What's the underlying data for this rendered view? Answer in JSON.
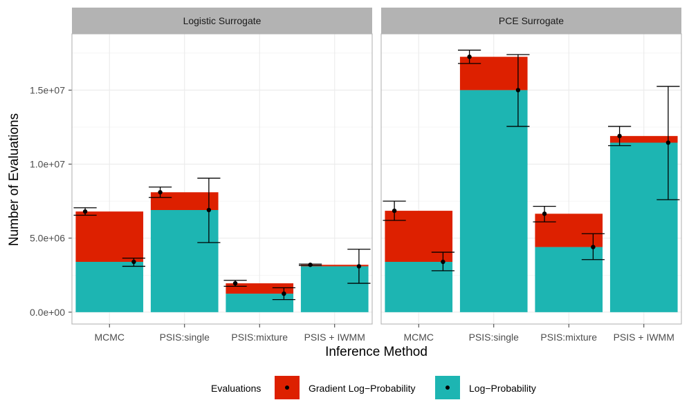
{
  "chart_data": {
    "type": "bar",
    "layout": "faceted stacked bar with error bars",
    "xlabel": "Inference Method",
    "ylabel": "Number of Evaluations",
    "categories": [
      "MCMC",
      "PSIS:single",
      "PSIS:mixture",
      "PSIS + IWMM"
    ],
    "ylim": [
      -800000,
      18800000
    ],
    "y_ticks": [
      0,
      5000000,
      10000000,
      15000000
    ],
    "y_tick_labels": [
      "0.0e+00",
      "5.0e+06",
      "1.0e+07",
      "1.5e+07"
    ],
    "grid": true,
    "colors": {
      "gradient": "#dd2000",
      "logprob": "#1db5b2",
      "strip": "#b3b3b3",
      "grid": "#ebebeb",
      "panel_border": "#b3b3b3"
    },
    "legend": {
      "title": "Evaluations",
      "position": "bottom",
      "entries": [
        {
          "label": "Gradient Log−Probability",
          "key": "gradient"
        },
        {
          "label": "Log−Probability",
          "key": "logprob"
        }
      ]
    },
    "facets": [
      {
        "title": "Logistic Surrogate",
        "series": [
          {
            "name": "Log−Probability",
            "key": "logprob",
            "values": [
              3400000,
              6900000,
              1250000,
              3100000
            ],
            "error_low": [
              3100000,
              4700000,
              850000,
              1950000
            ],
            "error_high": [
              3650000,
              9050000,
              1650000,
              4250000
            ]
          },
          {
            "name": "Gradient Log−Probability",
            "key": "gradient",
            "values": [
              3400000,
              1200000,
              700000,
              100000
            ],
            "total": [
              6800000,
              8100000,
              1950000,
              3200000
            ],
            "error_low": [
              6550000,
              7750000,
              1750000,
              3150000
            ],
            "error_high": [
              7050000,
              8450000,
              2150000,
              3250000
            ]
          }
        ]
      },
      {
        "title": "PCE Surrogate",
        "series": [
          {
            "name": "Log−Probability",
            "key": "logprob",
            "values": [
              3400000,
              15000000,
              4400000,
              11450000
            ],
            "error_low": [
              2800000,
              12550000,
              3550000,
              7600000
            ],
            "error_high": [
              4050000,
              17400000,
              5300000,
              15250000
            ]
          },
          {
            "name": "Gradient Log−Probability",
            "key": "gradient",
            "values": [
              3450000,
              2250000,
              2250000,
              450000
            ],
            "total": [
              6850000,
              17250000,
              6650000,
              11900000
            ],
            "error_low": [
              6200000,
              16800000,
              6100000,
              11250000
            ],
            "error_high": [
              7500000,
              17700000,
              7150000,
              12550000
            ]
          }
        ]
      }
    ]
  }
}
